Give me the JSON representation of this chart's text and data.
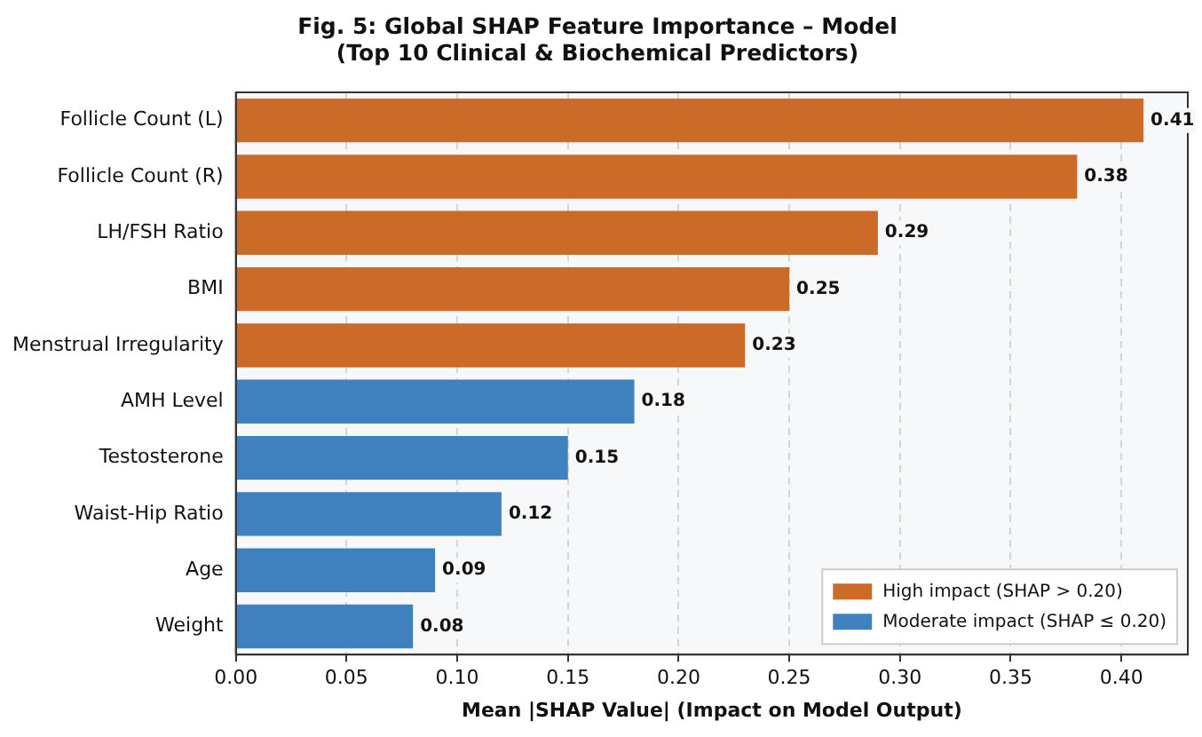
{
  "chart_data": {
    "type": "bar",
    "orientation": "horizontal",
    "title": "Fig. 5: Global SHAP Feature Importance – Model\n(Top 10 Clinical & Biochemical Predictors)",
    "xlabel": "Mean |SHAP Value| (Impact on Model Output)",
    "categories": [
      "Follicle Count (L)",
      "Follicle Count (R)",
      "LH/FSH Ratio",
      "BMI",
      "Menstrual Irregularity",
      "AMH Level",
      "Testosterone",
      "Waist-Hip Ratio",
      "Age",
      "Weight"
    ],
    "series": [
      {
        "name": "High impact (SHAP > 0.20)",
        "color": "#cc6a28",
        "values": [
          0.41,
          0.38,
          0.29,
          0.25,
          0.23,
          null,
          null,
          null,
          null,
          null
        ]
      },
      {
        "name": "Moderate impact (SHAP ≤ 0.20)",
        "color": "#3f80bf",
        "values": [
          null,
          null,
          null,
          null,
          null,
          0.18,
          0.15,
          0.12,
          0.09,
          0.08
        ]
      }
    ],
    "xlim": [
      0,
      0.43
    ],
    "xticks": [
      {
        "value": 0,
        "label": "0.00"
      },
      {
        "value": 0.05,
        "label": "0.05"
      },
      {
        "value": 0.1,
        "label": "0.10"
      },
      {
        "value": 0.15,
        "label": "0.15"
      },
      {
        "value": 0.2,
        "label": "0.20"
      },
      {
        "value": 0.25,
        "label": "0.25"
      },
      {
        "value": 0.3,
        "label": "0.30"
      },
      {
        "value": 0.35,
        "label": "0.35"
      },
      {
        "value": 0.4,
        "label": "0.40"
      }
    ],
    "grid": "x",
    "legend": "bottom right",
    "data_labels": true
  }
}
